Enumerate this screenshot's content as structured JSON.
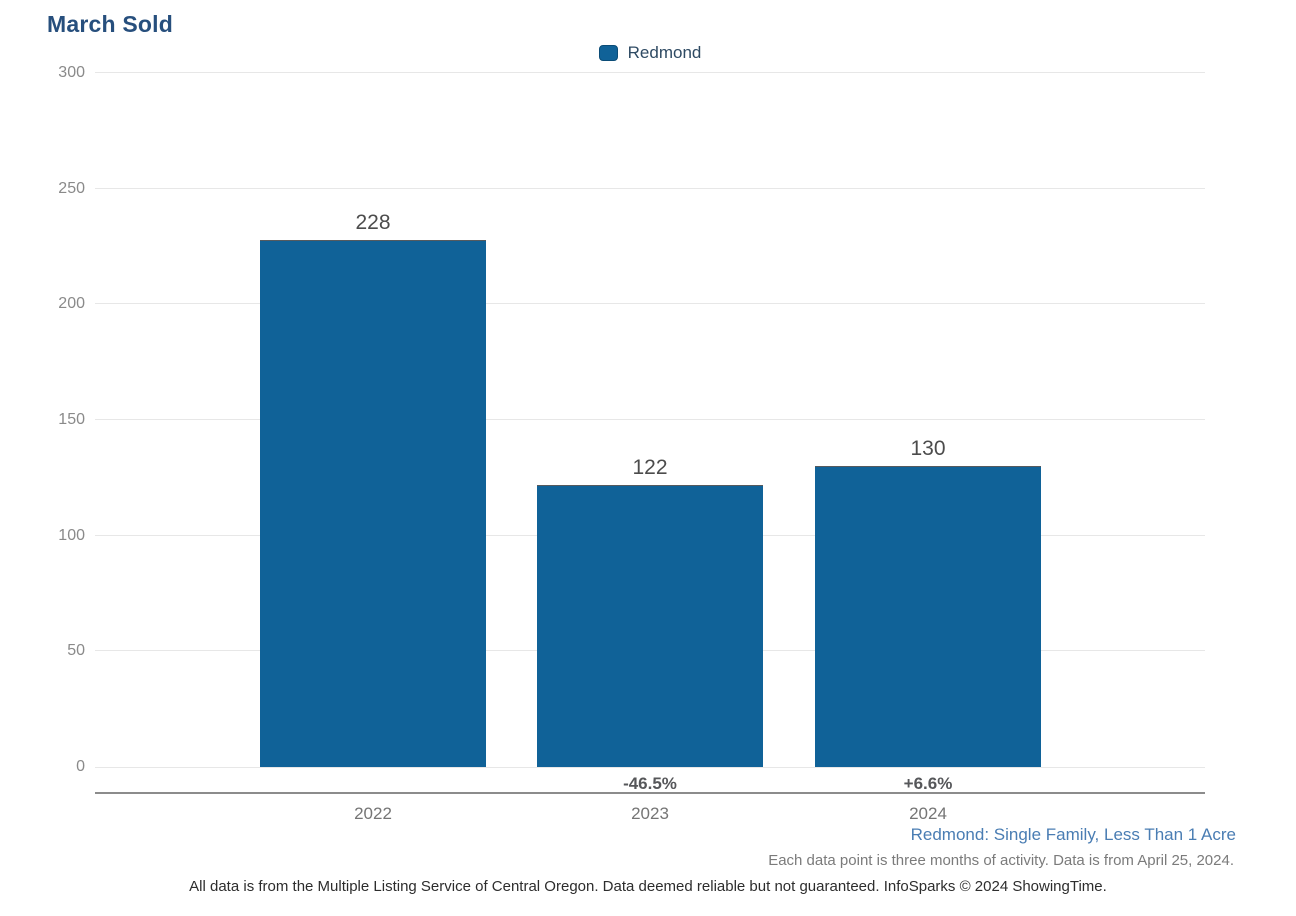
{
  "title": "March Sold",
  "legend": {
    "label": "Redmond"
  },
  "chart_data": {
    "type": "bar",
    "title": "March Sold",
    "categories": [
      "2022",
      "2023",
      "2024"
    ],
    "series": [
      {
        "name": "Redmond",
        "values": [
          228,
          122,
          130
        ]
      }
    ],
    "change_labels": [
      "",
      "-46.5%",
      "+6.6%"
    ],
    "ylim": [
      0,
      300
    ],
    "yticks": [
      0,
      50,
      100,
      150,
      200,
      250,
      300
    ],
    "xlabel": "",
    "ylabel": "",
    "grid": "horizontal",
    "legend_position": "top-center",
    "bar_color": "#106298",
    "bar_border_color": "#565a5e"
  },
  "footnotes": {
    "segment": "Redmond: Single Family, Less Than 1 Acre",
    "data_note": "Each data point is three months of activity. Data is from April 25, 2024.",
    "disclaimer": "All data is from the Multiple Listing Service of Central Oregon. Data deemed reliable but not guaranteed. InfoSparks © 2024 ShowingTime."
  },
  "colors": {
    "title": "#274f7d",
    "bar": "#106298",
    "segment_footnote": "#4a7db3",
    "gridline": "#e7e7e7",
    "axis_line": "#8c8c8c"
  }
}
